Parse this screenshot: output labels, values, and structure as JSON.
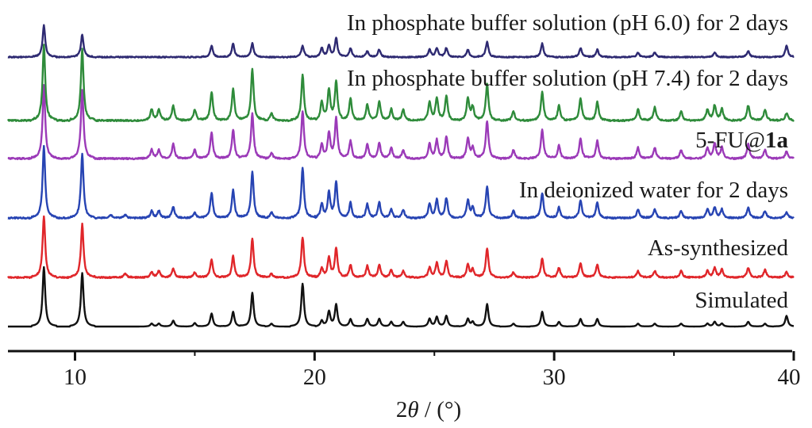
{
  "chart_data": {
    "type": "line",
    "title": "",
    "xlabel_prefix": "2",
    "xlabel_symbol": "θ",
    "xlabel_suffix": " / (°)",
    "ylabel": "",
    "xlim": [
      7.2,
      40
    ],
    "xticks": [
      10,
      20,
      30,
      40
    ],
    "grid": false,
    "legend": "inline labels at right end of each trace",
    "series": [
      {
        "name": "Simulated",
        "color": "#111111",
        "noise": 0,
        "peaks": [
          [
            8.7,
            1.0
          ],
          [
            10.3,
            0.9
          ],
          [
            13.2,
            0.05
          ],
          [
            13.5,
            0.05
          ],
          [
            14.1,
            0.1
          ],
          [
            15.0,
            0.06
          ],
          [
            15.7,
            0.22
          ],
          [
            16.6,
            0.25
          ],
          [
            17.4,
            0.57
          ],
          [
            18.2,
            0.05
          ],
          [
            19.5,
            0.72
          ],
          [
            20.3,
            0.1
          ],
          [
            20.6,
            0.25
          ],
          [
            20.9,
            0.37
          ],
          [
            21.5,
            0.13
          ],
          [
            22.2,
            0.13
          ],
          [
            22.7,
            0.13
          ],
          [
            23.2,
            0.08
          ],
          [
            23.7,
            0.08
          ],
          [
            24.8,
            0.13
          ],
          [
            25.1,
            0.16
          ],
          [
            25.5,
            0.18
          ],
          [
            26.4,
            0.13
          ],
          [
            26.6,
            0.08
          ],
          [
            27.2,
            0.38
          ],
          [
            28.3,
            0.05
          ],
          [
            29.5,
            0.25
          ],
          [
            30.2,
            0.08
          ],
          [
            31.1,
            0.13
          ],
          [
            31.8,
            0.13
          ],
          [
            33.5,
            0.05
          ],
          [
            34.2,
            0.05
          ],
          [
            35.3,
            0.05
          ],
          [
            36.4,
            0.05
          ],
          [
            36.7,
            0.08
          ],
          [
            37.0,
            0.05
          ],
          [
            38.1,
            0.08
          ],
          [
            38.8,
            0.05
          ],
          [
            39.7,
            0.18
          ]
        ]
      },
      {
        "name": "As-synthesized",
        "color": "#e0262a",
        "noise": 0.02,
        "peaks": [
          [
            8.7,
            0.95
          ],
          [
            10.3,
            0.82
          ],
          [
            12.1,
            0.06
          ],
          [
            13.2,
            0.08
          ],
          [
            13.5,
            0.1
          ],
          [
            14.1,
            0.14
          ],
          [
            15.0,
            0.08
          ],
          [
            15.7,
            0.28
          ],
          [
            16.6,
            0.33
          ],
          [
            17.4,
            0.6
          ],
          [
            18.2,
            0.06
          ],
          [
            19.5,
            0.62
          ],
          [
            20.3,
            0.15
          ],
          [
            20.6,
            0.3
          ],
          [
            20.9,
            0.45
          ],
          [
            21.5,
            0.2
          ],
          [
            22.2,
            0.18
          ],
          [
            22.7,
            0.2
          ],
          [
            23.2,
            0.12
          ],
          [
            23.7,
            0.1
          ],
          [
            24.8,
            0.15
          ],
          [
            25.1,
            0.22
          ],
          [
            25.5,
            0.25
          ],
          [
            26.4,
            0.2
          ],
          [
            26.6,
            0.12
          ],
          [
            27.2,
            0.45
          ],
          [
            28.3,
            0.08
          ],
          [
            29.5,
            0.3
          ],
          [
            30.2,
            0.15
          ],
          [
            31.1,
            0.22
          ],
          [
            31.8,
            0.2
          ],
          [
            33.5,
            0.1
          ],
          [
            34.2,
            0.1
          ],
          [
            35.3,
            0.1
          ],
          [
            36.4,
            0.1
          ],
          [
            36.7,
            0.15
          ],
          [
            37.0,
            0.12
          ],
          [
            38.1,
            0.15
          ],
          [
            38.8,
            0.12
          ],
          [
            39.7,
            0.08
          ]
        ]
      },
      {
        "name": "In deionized water for 2 days",
        "color": "#2744b3",
        "noise": 0.02,
        "peaks": [
          [
            8.7,
            1.0
          ],
          [
            10.3,
            0.9
          ],
          [
            11.5,
            0.04
          ],
          [
            12.1,
            0.05
          ],
          [
            13.2,
            0.1
          ],
          [
            13.5,
            0.1
          ],
          [
            14.1,
            0.16
          ],
          [
            15.0,
            0.08
          ],
          [
            15.7,
            0.35
          ],
          [
            16.6,
            0.4
          ],
          [
            17.4,
            0.65
          ],
          [
            18.2,
            0.08
          ],
          [
            19.5,
            0.7
          ],
          [
            20.3,
            0.2
          ],
          [
            20.6,
            0.35
          ],
          [
            20.9,
            0.5
          ],
          [
            21.5,
            0.22
          ],
          [
            22.2,
            0.2
          ],
          [
            22.7,
            0.22
          ],
          [
            23.2,
            0.12
          ],
          [
            23.7,
            0.12
          ],
          [
            24.8,
            0.2
          ],
          [
            25.1,
            0.25
          ],
          [
            25.5,
            0.28
          ],
          [
            26.4,
            0.25
          ],
          [
            26.6,
            0.15
          ],
          [
            27.2,
            0.45
          ],
          [
            28.3,
            0.1
          ],
          [
            29.5,
            0.35
          ],
          [
            30.2,
            0.15
          ],
          [
            31.1,
            0.25
          ],
          [
            31.8,
            0.22
          ],
          [
            33.5,
            0.12
          ],
          [
            34.2,
            0.12
          ],
          [
            35.3,
            0.1
          ],
          [
            36.4,
            0.12
          ],
          [
            36.7,
            0.15
          ],
          [
            37.0,
            0.12
          ],
          [
            38.1,
            0.15
          ],
          [
            38.8,
            0.1
          ],
          [
            39.7,
            0.08
          ]
        ]
      },
      {
        "name": "5-FU@1a",
        "label_main": "5-FU@",
        "label_bold": "1a",
        "color": "#9b3ab8",
        "noise": 0.02,
        "peaks": [
          [
            8.7,
            1.0
          ],
          [
            10.3,
            0.95
          ],
          [
            13.2,
            0.12
          ],
          [
            13.5,
            0.12
          ],
          [
            14.1,
            0.2
          ],
          [
            15.0,
            0.12
          ],
          [
            15.7,
            0.35
          ],
          [
            16.6,
            0.4
          ],
          [
            17.4,
            0.62
          ],
          [
            18.2,
            0.08
          ],
          [
            19.5,
            0.65
          ],
          [
            20.3,
            0.2
          ],
          [
            20.6,
            0.35
          ],
          [
            20.9,
            0.55
          ],
          [
            21.5,
            0.25
          ],
          [
            22.2,
            0.2
          ],
          [
            22.7,
            0.22
          ],
          [
            23.2,
            0.15
          ],
          [
            23.7,
            0.12
          ],
          [
            24.8,
            0.2
          ],
          [
            25.1,
            0.25
          ],
          [
            25.5,
            0.3
          ],
          [
            26.4,
            0.28
          ],
          [
            26.6,
            0.15
          ],
          [
            27.2,
            0.52
          ],
          [
            28.3,
            0.12
          ],
          [
            29.5,
            0.4
          ],
          [
            30.2,
            0.18
          ],
          [
            31.1,
            0.28
          ],
          [
            31.8,
            0.25
          ],
          [
            33.5,
            0.15
          ],
          [
            34.2,
            0.15
          ],
          [
            35.3,
            0.12
          ],
          [
            36.4,
            0.15
          ],
          [
            36.7,
            0.2
          ],
          [
            37.0,
            0.15
          ],
          [
            38.1,
            0.2
          ],
          [
            38.8,
            0.12
          ],
          [
            39.7,
            0.1
          ]
        ]
      },
      {
        "name": "In phosphate buffer solution (pH 7.4) for 2 days",
        "color": "#2e8b3a",
        "noise": 0.02,
        "peaks": [
          [
            8.7,
            1.0
          ],
          [
            10.3,
            0.95
          ],
          [
            13.2,
            0.15
          ],
          [
            13.5,
            0.15
          ],
          [
            14.1,
            0.2
          ],
          [
            15.0,
            0.15
          ],
          [
            15.7,
            0.38
          ],
          [
            16.6,
            0.42
          ],
          [
            17.4,
            0.68
          ],
          [
            18.2,
            0.1
          ],
          [
            19.5,
            0.6
          ],
          [
            20.3,
            0.25
          ],
          [
            20.6,
            0.4
          ],
          [
            20.9,
            0.52
          ],
          [
            21.5,
            0.3
          ],
          [
            22.2,
            0.22
          ],
          [
            22.7,
            0.25
          ],
          [
            23.2,
            0.15
          ],
          [
            23.7,
            0.15
          ],
          [
            24.8,
            0.25
          ],
          [
            25.1,
            0.3
          ],
          [
            25.5,
            0.32
          ],
          [
            26.4,
            0.3
          ],
          [
            26.6,
            0.18
          ],
          [
            27.2,
            0.48
          ],
          [
            28.3,
            0.12
          ],
          [
            29.5,
            0.38
          ],
          [
            30.2,
            0.2
          ],
          [
            31.1,
            0.3
          ],
          [
            31.8,
            0.25
          ],
          [
            33.5,
            0.15
          ],
          [
            34.2,
            0.18
          ],
          [
            35.3,
            0.12
          ],
          [
            36.4,
            0.15
          ],
          [
            36.7,
            0.2
          ],
          [
            37.0,
            0.15
          ],
          [
            38.1,
            0.2
          ],
          [
            38.8,
            0.15
          ],
          [
            39.7,
            0.1
          ]
        ]
      },
      {
        "name": "In phosphate buffer solution (pH 6.0) for 2 days",
        "color": "#2e2a72",
        "noise": 0.015,
        "peaks": [
          [
            8.7,
            0.42
          ],
          [
            10.3,
            0.3
          ],
          [
            15.7,
            0.15
          ],
          [
            16.6,
            0.18
          ],
          [
            17.4,
            0.18
          ],
          [
            19.5,
            0.15
          ],
          [
            20.3,
            0.12
          ],
          [
            20.6,
            0.15
          ],
          [
            20.9,
            0.25
          ],
          [
            21.5,
            0.12
          ],
          [
            22.2,
            0.08
          ],
          [
            22.7,
            0.1
          ],
          [
            24.8,
            0.1
          ],
          [
            25.1,
            0.12
          ],
          [
            25.5,
            0.12
          ],
          [
            26.4,
            0.1
          ],
          [
            27.2,
            0.2
          ],
          [
            29.5,
            0.18
          ],
          [
            31.1,
            0.12
          ],
          [
            31.8,
            0.1
          ],
          [
            33.5,
            0.06
          ],
          [
            34.2,
            0.06
          ],
          [
            36.7,
            0.06
          ],
          [
            38.1,
            0.08
          ],
          [
            39.7,
            0.15
          ]
        ]
      }
    ]
  }
}
